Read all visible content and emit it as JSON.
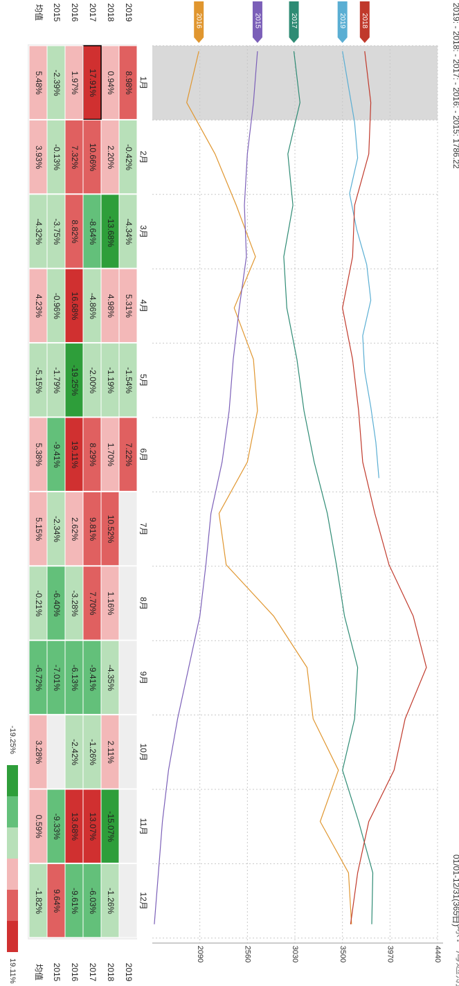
{
  "header": {
    "legend_line": "2019: - 2018: - 2017: - 2016: - 2015: 1786.22",
    "range_label": "01/01-12/31(365日)"
  },
  "watermark": "雪球：海通期货",
  "colorbar": {
    "min_label": "-19.25%",
    "max_label": "19.11%"
  },
  "table": {
    "years": [
      "2019",
      "2018",
      "2017",
      "2016",
      "2015"
    ],
    "avg_label": "均值",
    "months": [
      "1月",
      "2月",
      "3月",
      "4月",
      "5月",
      "6月",
      "7月",
      "8月",
      "9月",
      "10月",
      "11月",
      "12月"
    ],
    "values": {
      "2019": [
        "8.98%",
        "-0.42%",
        "-4.34%",
        "5.31%",
        "-1.54%",
        "7.22%",
        "",
        "",
        "",
        "",
        "",
        ""
      ],
      "2018": [
        "0.94%",
        "2.20%",
        "-13.68%",
        "4.98%",
        "-1.19%",
        "1.70%",
        "10.52%",
        "1.16%",
        "-4.35%",
        "2.11%",
        "-15.07%",
        "-1.26%"
      ],
      "2017": [
        "17.91%",
        "10.66%",
        "-8.64%",
        "-4.86%",
        "-2.00%",
        "8.29%",
        "9.81%",
        "7.70%",
        "-9.41%",
        "-1.26%",
        "13.07%",
        "-6.03%"
      ],
      "2016": [
        "1.97%",
        "7.32%",
        "8.82%",
        "16.68%",
        "-19.25%",
        "19.11%",
        "2.62%",
        "-3.28%",
        "-6.13%",
        "-2.42%",
        "13.68%",
        "-9.61%"
      ],
      "2015": [
        "-2.39%",
        "-0.13%",
        "-3.75%",
        "-0.96%",
        "-1.79%",
        "-9.41%",
        "-2.34%",
        "-6.40%",
        "-7.01%",
        "",
        "-9.33%",
        "9.64%"
      ],
      "avg": [
        "5.48%",
        "3.93%",
        "-4.32%",
        "4.23%",
        "-5.15%",
        "5.38%",
        "5.15%",
        "-0.21%",
        "-6.72%",
        "3.28%",
        "0.59%",
        "-1.82%"
      ]
    }
  },
  "colors": {
    "y2019": "#5aaed3",
    "y2018": "#c0392b",
    "y2017": "#2e8b74",
    "y2016": "#e0962f",
    "y2015": "#7b5fb8",
    "highlight": "#d9d9d9",
    "grid": "#c8c8c8",
    "scale": [
      "#2e9e3a",
      "#63c07a",
      "#b8e0b9",
      "#f3b8b8",
      "#e06060",
      "#d03030"
    ]
  },
  "chart_data": {
    "type": "line",
    "orientation": "rotated 90 degrees clockwise",
    "range_label": "01/01-12/31(365日)",
    "x_ticks": [
      "1月",
      "2月",
      "3月",
      "4月",
      "5月",
      "6月",
      "7月",
      "8月",
      "9月",
      "10月",
      "11月",
      "12月"
    ],
    "y_ticks": [
      2090,
      2560,
      3030,
      3500,
      3970,
      4440
    ],
    "ylim": [
      1620,
      4440
    ],
    "highlight_range": "01/01-01/31",
    "legend": [
      "2019",
      "2018",
      "2017",
      "2016",
      "2015"
    ],
    "series": [
      {
        "name": "2016",
        "values": [
          2080,
          1960,
          2240,
          2450,
          2640,
          2430,
          2620,
          2660,
          2560,
          2280,
          2350,
          2820,
          3150,
          3210,
          3460,
          3280,
          3560,
          3590
        ]
      },
      {
        "name": "2015",
        "values": [
          2660,
          2620,
          2560,
          2530,
          2550,
          2480,
          2420,
          2380,
          2310,
          2200,
          2150,
          2090,
          1980,
          1870,
          1780,
          1720,
          1680,
          1640
        ]
      },
      {
        "name": "2017",
        "values": [
          3020,
          3080,
          2960,
          3010,
          2920,
          2950,
          3050,
          3120,
          3220,
          3350,
          3440,
          3520,
          3650,
          3620,
          3500,
          3660,
          3800,
          3790
        ]
      },
      {
        "name": "2019",
        "values": [
          3500,
          3560,
          3620,
          3650,
          3570,
          3640,
          3740,
          3780,
          3700,
          3720,
          3780,
          3830,
          3860
        ]
      },
      {
        "name": "2018",
        "values": [
          3720,
          3780,
          3760,
          3620,
          3600,
          3500,
          3600,
          3660,
          3700,
          3820,
          3960,
          4200,
          4330,
          4120,
          4010,
          3760,
          3650,
          3580
        ]
      }
    ]
  }
}
